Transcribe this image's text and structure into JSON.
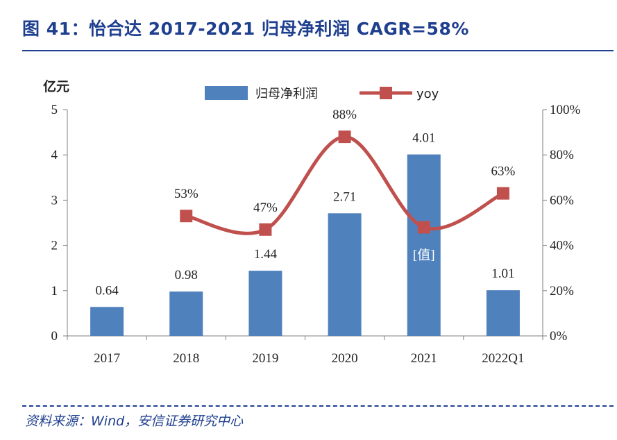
{
  "header": {
    "title": "图 41：怡合达 2017-2021 归母净利润 CAGR=58%"
  },
  "footer": {
    "source": "资料来源：Wind，安信证券研究中心"
  },
  "chart_data": {
    "type": "bar",
    "categories": [
      "2017",
      "2018",
      "2019",
      "2020",
      "2021",
      "2022Q1"
    ],
    "ylabel": "亿元",
    "ylim": [
      0,
      5
    ],
    "yticks": [
      0,
      1,
      2,
      3,
      4,
      5
    ],
    "y2lim": [
      0,
      100
    ],
    "y2ticks": [
      "0%",
      "20%",
      "40%",
      "60%",
      "80%",
      "100%"
    ],
    "legend_position": "top",
    "series": [
      {
        "name": "归母净利润",
        "kind": "bar",
        "axis": "left",
        "color": "#4f81bd",
        "values": [
          0.64,
          0.98,
          1.44,
          2.71,
          4.01,
          1.01
        ],
        "labels": [
          "0.64",
          "0.98",
          "1.44",
          "2.71",
          "4.01",
          "1.01"
        ]
      },
      {
        "name": "yoy",
        "kind": "line",
        "axis": "right",
        "color": "#c0504d",
        "values": [
          null,
          53,
          47,
          88,
          48,
          63
        ],
        "labels": [
          "",
          "53%",
          "47%",
          "88%",
          "[值]",
          "63%"
        ]
      }
    ]
  }
}
